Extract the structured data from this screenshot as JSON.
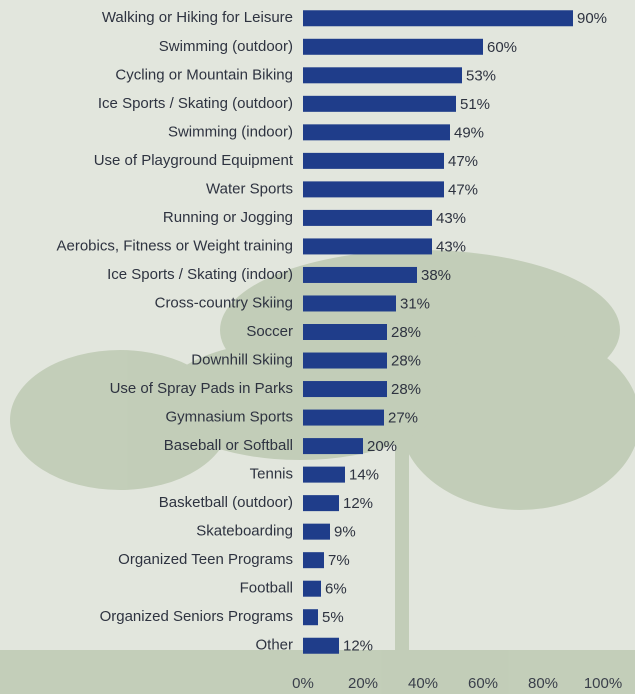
{
  "chart_data": {
    "type": "bar",
    "orientation": "horizontal",
    "color": "#1f3d8a",
    "categories": [
      "Walking or Hiking for Leisure",
      "Swimming (outdoor)",
      "Cycling or Mountain Biking",
      "Ice Sports / Skating (outdoor)",
      "Swimming (indoor)",
      "Use of Playground Equipment",
      "Water Sports",
      "Running or Jogging",
      "Aerobics, Fitness or Weight training",
      "Ice Sports / Skating (indoor)",
      "Cross-country Skiing",
      "Soccer",
      "Downhill Skiing",
      "Use of Spray Pads in Parks",
      "Gymnasium Sports",
      "Baseball or Softball",
      "Tennis",
      "Basketball (outdoor)",
      "Skateboarding",
      "Organized Teen Programs",
      "Football",
      "Organized Seniors Programs",
      "Other"
    ],
    "values": [
      90,
      60,
      53,
      51,
      49,
      47,
      47,
      43,
      43,
      38,
      31,
      28,
      28,
      28,
      27,
      20,
      14,
      12,
      9,
      7,
      6,
      5,
      12
    ],
    "value_labels": [
      "90%",
      "60%",
      "53%",
      "51%",
      "49%",
      "47%",
      "47%",
      "43%",
      "43%",
      "38%",
      "31%",
      "28%",
      "28%",
      "28%",
      "27%",
      "20%",
      "14%",
      "12%",
      "9%",
      "7%",
      "6%",
      "5%",
      "12%"
    ],
    "xlim": [
      0,
      100
    ],
    "xticks": [
      {
        "value": 0,
        "label": "0%"
      },
      {
        "value": 20,
        "label": "20%"
      },
      {
        "value": 40,
        "label": "40%"
      },
      {
        "value": 60,
        "label": "60%"
      },
      {
        "value": 80,
        "label": "80%"
      },
      {
        "value": 100,
        "label": "100%"
      }
    ]
  }
}
